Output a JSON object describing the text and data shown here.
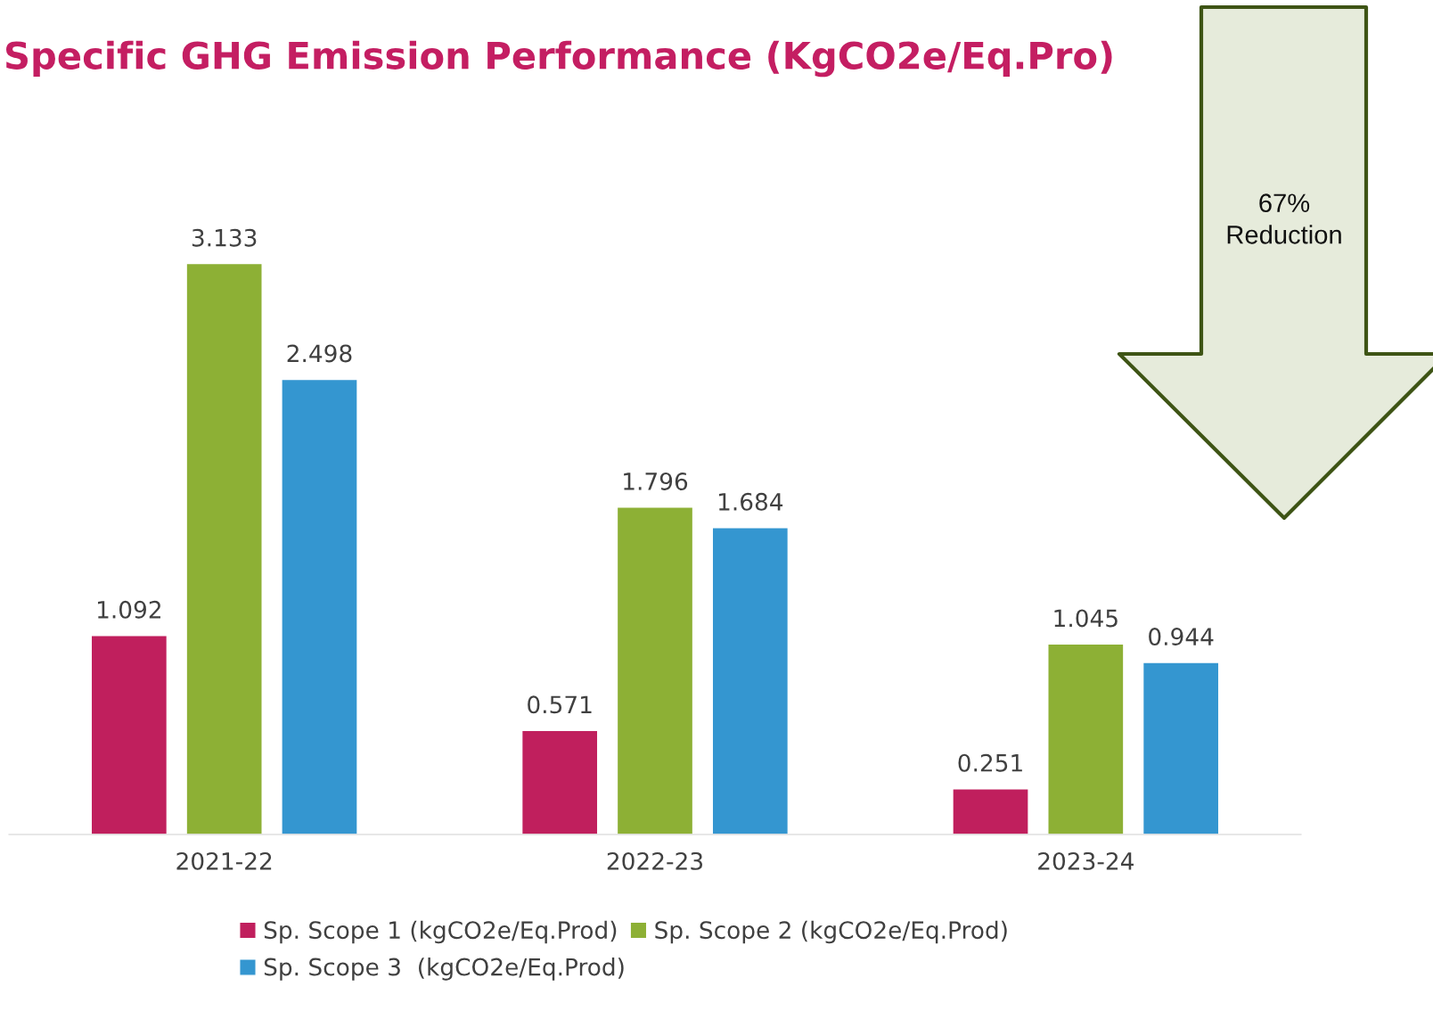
{
  "chart_data": {
    "type": "bar",
    "title": "Specific GHG Emission Performance (KgCO2e/Eq.Pro)",
    "categories": [
      "2021-22",
      "2022-23",
      "2023-24"
    ],
    "series": [
      {
        "name": "Sp. Scope 1 (kgCO2e/Eq.Prod)",
        "color": "#c01f5d",
        "values": [
          1.092,
          0.571,
          0.251
        ]
      },
      {
        "name": "Sp. Scope 2 (kgCO2e/Eq.Prod)",
        "color": "#8db035",
        "values": [
          3.133,
          1.796,
          1.045
        ]
      },
      {
        "name": "Sp. Scope 3  (kgCO2e/Eq.Prod)",
        "color": "#3496d0",
        "values": [
          2.498,
          1.684,
          0.944
        ]
      }
    ],
    "data_labels": true,
    "legend": "bottom",
    "grid": false,
    "annotations": [
      "67%\nReduction"
    ]
  }
}
